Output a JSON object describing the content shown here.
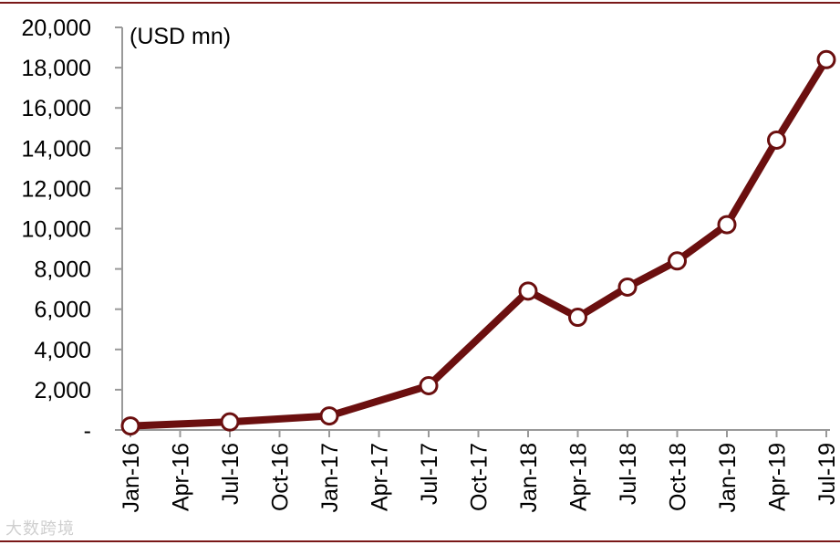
{
  "chart_data": {
    "type": "line",
    "unit_label": "(USD mn)",
    "x": [
      "Jan-16",
      "Jul-16",
      "Jan-17",
      "Jul-17",
      "Jan-18",
      "Apr-18",
      "Jul-18",
      "Oct-18",
      "Jan-19",
      "Apr-19",
      "Jul-19"
    ],
    "tick_labels": [
      "Jan-16",
      "Apr-16",
      "Jul-16",
      "Oct-16",
      "Jan-17",
      "Apr-17",
      "Jul-17",
      "Oct-17",
      "Jan-18",
      "Apr-18",
      "Jul-18",
      "Oct-18",
      "Jan-19",
      "Apr-19",
      "Jul-19"
    ],
    "series": [
      {
        "values": [
          200,
          400,
          700,
          2200,
          6900,
          5600,
          7100,
          8400,
          10200,
          14400,
          18400
        ]
      }
    ],
    "y_tick_labels": [
      "-",
      "2,000",
      "4,000",
      "6,000",
      "8,000",
      "10,000",
      "12,000",
      "14,000",
      "16,000",
      "18,000",
      "20,000"
    ],
    "ylim": [
      0,
      20000
    ],
    "grid": false,
    "colors": {
      "line": "#6b0f0f",
      "marker_fill": "#ffffff",
      "frame": "#7a1818"
    }
  },
  "watermark": "大数跨境"
}
